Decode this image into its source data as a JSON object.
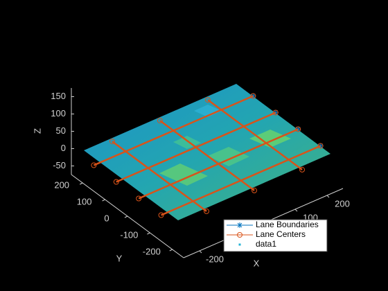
{
  "chart_data": {
    "type": "scatter3d",
    "xlabel": "X",
    "ylabel": "Y",
    "zlabel": "Z",
    "xlim": [
      -250,
      250
    ],
    "ylim": [
      -250,
      250
    ],
    "zlim": [
      -75,
      175
    ],
    "xticks": [
      -200,
      -100,
      0,
      100,
      200
    ],
    "yticks": [
      -200,
      -100,
      0,
      100,
      200
    ],
    "zticks": [
      -50,
      0,
      50,
      100,
      150
    ],
    "legend": "lower right",
    "series": [
      {
        "name": "Lane Boundaries",
        "color": "#0072bd",
        "marker": "star",
        "x": [
          250,
          null,
          250,
          null,
          250,
          null,
          250
        ],
        "y": [
          150,
          null,
          50,
          null,
          -50,
          null,
          -150
        ],
        "z": [
          0,
          null,
          0,
          null,
          0,
          null,
          0
        ]
      },
      {
        "name": "Lane Centers",
        "color": "#d95319",
        "marker": "circle",
        "x": [
          -250,
          250,
          null,
          -250,
          250,
          null,
          -250,
          250,
          null,
          -250,
          250,
          null,
          -150,
          -150,
          null,
          0,
          0,
          null,
          150,
          150
        ],
        "y": [
          150,
          150,
          null,
          50,
          50,
          null,
          -50,
          -50,
          null,
          -150,
          -150,
          null,
          210,
          -210,
          null,
          210,
          -210,
          null,
          210,
          -210
        ],
        "z": [
          0,
          0,
          null,
          0,
          0,
          null,
          0,
          0,
          null,
          0,
          0,
          null,
          0,
          0,
          null,
          0,
          0,
          null,
          0,
          0
        ]
      },
      {
        "name": "data1",
        "color": "#23b4d6",
        "marker": "point"
      }
    ]
  }
}
